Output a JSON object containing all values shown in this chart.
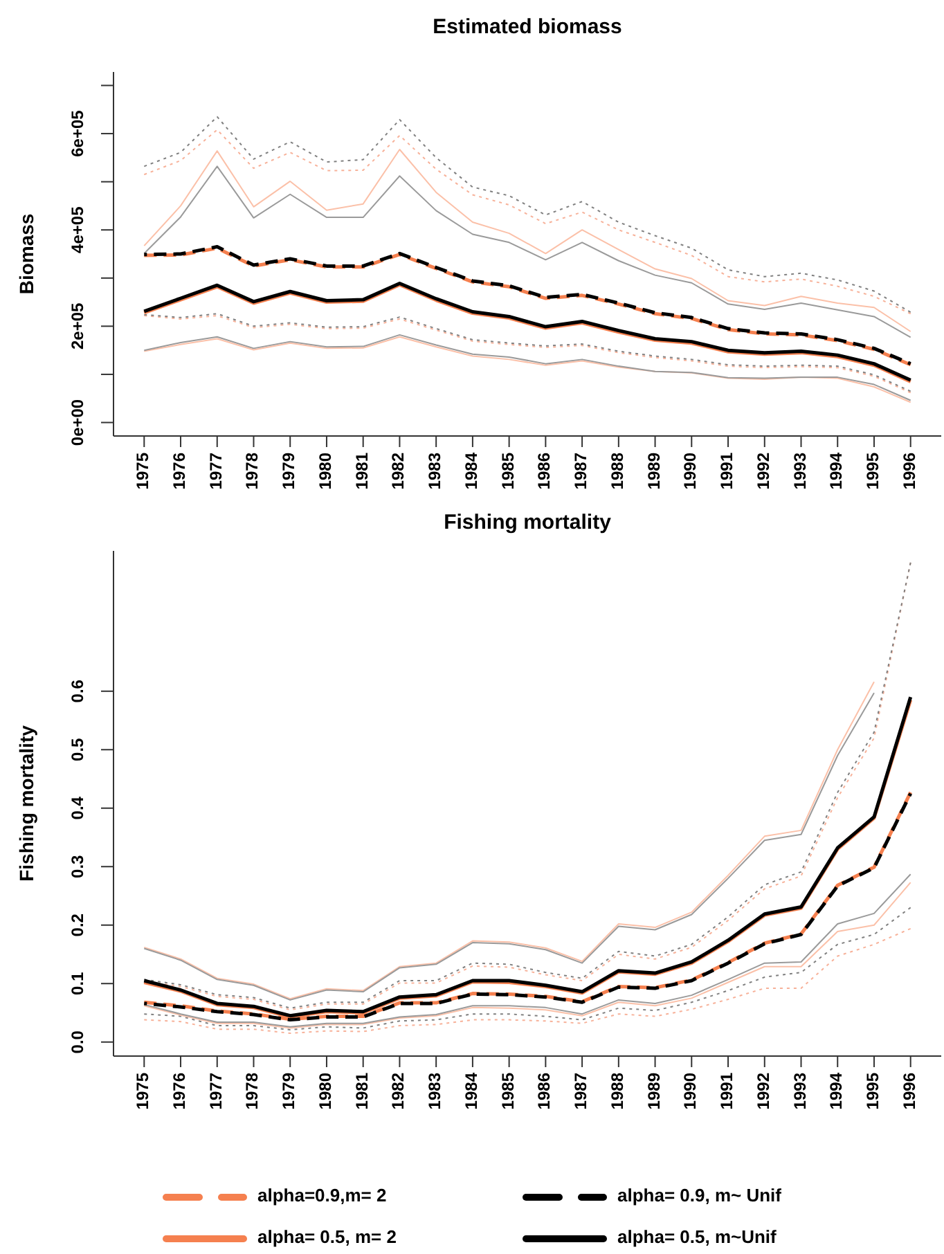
{
  "chart_data": [
    {
      "type": "line",
      "title": "Estimated biomass",
      "ylabel": "Biomass",
      "categories": [
        "1975",
        "1976",
        "1977",
        "1978",
        "1979",
        "1980",
        "1981",
        "1982",
        "1983",
        "1984",
        "1985",
        "1986",
        "1987",
        "1988",
        "1989",
        "1990",
        "1991",
        "1992",
        "1993",
        "1994",
        "1995",
        "1996"
      ],
      "ylim": [
        -28000,
        728000
      ],
      "yticks": [
        {
          "value": 0,
          "label": "0e+00"
        },
        {
          "value": 100000,
          "label": null
        },
        {
          "value": 200000,
          "label": "2e+05"
        },
        {
          "value": 300000,
          "label": null
        },
        {
          "value": 400000,
          "label": "4e+05"
        },
        {
          "value": 500000,
          "label": null
        },
        {
          "value": 600000,
          "label": "6e+05"
        },
        {
          "value": 700000,
          "label": null
        }
      ],
      "series": [
        {
          "color": "#f7b199",
          "line_style": "dotted",
          "values": [
            515000,
            544000,
            608000,
            528000,
            561000,
            523000,
            524000,
            596000,
            526000,
            473000,
            452000,
            413000,
            437000,
            400000,
            374000,
            347000,
            303000,
            292000,
            298000,
            283000,
            262000,
            226000
          ]
        },
        {
          "color": "#f7b199",
          "line_style": "dotted",
          "values": [
            222000,
            215000,
            222000,
            197000,
            204000,
            195000,
            196000,
            215000,
            192000,
            169000,
            162000,
            156000,
            160000,
            145000,
            135000,
            128000,
            117000,
            114000,
            116000,
            114000,
            96000,
            62000
          ]
        },
        {
          "color": "#808080",
          "line_style": "dotted",
          "values": [
            532000,
            561000,
            635000,
            547000,
            583000,
            541000,
            546000,
            629000,
            550000,
            489000,
            471000,
            431000,
            459000,
            416000,
            388000,
            362000,
            317000,
            303000,
            310000,
            296000,
            273000,
            229000
          ]
        },
        {
          "color": "#808080",
          "line_style": "dotted",
          "values": [
            224000,
            218000,
            226000,
            200000,
            207000,
            198000,
            199000,
            219000,
            195000,
            172000,
            165000,
            159000,
            163000,
            148000,
            138000,
            131000,
            120000,
            117000,
            119000,
            117000,
            99000,
            65000
          ]
        },
        {
          "color": "#fbc0a8",
          "line_style": "solid",
          "values": [
            367000,
            450000,
            564000,
            448000,
            501000,
            441000,
            454000,
            567000,
            478000,
            416000,
            393000,
            351000,
            400000,
            359000,
            319000,
            299000,
            253000,
            243000,
            262000,
            248000,
            239000,
            189000
          ]
        },
        {
          "color": "#fbc0a8",
          "line_style": "solid",
          "values": [
            148000,
            162000,
            174000,
            151000,
            165000,
            154000,
            155000,
            178000,
            157000,
            138000,
            131000,
            119000,
            128000,
            115000,
            106000,
            103000,
            92000,
            90000,
            94000,
            92000,
            74000,
            42000
          ]
        },
        {
          "color": "#9a9a9a",
          "line_style": "solid",
          "values": [
            351000,
            427000,
            532000,
            425000,
            474000,
            426000,
            426000,
            512000,
            440000,
            391000,
            374000,
            338000,
            374000,
            336000,
            306000,
            290000,
            246000,
            235000,
            248000,
            234000,
            220000,
            177000
          ]
        },
        {
          "color": "#9a9a9a",
          "line_style": "solid",
          "values": [
            150000,
            166000,
            178000,
            154000,
            168000,
            157000,
            158000,
            182000,
            161000,
            142000,
            136000,
            122000,
            131000,
            117000,
            106000,
            104000,
            93000,
            92000,
            94000,
            94000,
            79000,
            46000
          ]
        },
        {
          "color": "#f5804f",
          "line_style": "dashed",
          "values": [
            347000,
            348000,
            362000,
            325000,
            338000,
            323000,
            323000,
            349000,
            320000,
            292000,
            282000,
            258000,
            264000,
            246000,
            226000,
            216000,
            193000,
            184000,
            182000,
            170000,
            152000,
            120000
          ]
        },
        {
          "color": "#f5804f",
          "line_style": "solid",
          "values": [
            228000,
            255000,
            282000,
            248000,
            269000,
            250000,
            252000,
            286000,
            254000,
            227000,
            217000,
            196000,
            207000,
            188000,
            171000,
            165000,
            147000,
            142000,
            145000,
            137000,
            119000,
            85000
          ]
        },
        {
          "color": "#000000",
          "line_style": "dashed",
          "values": [
            349000,
            350000,
            365000,
            327000,
            340000,
            325000,
            325000,
            351000,
            322000,
            294000,
            284000,
            260000,
            266000,
            248000,
            228000,
            218000,
            195000,
            186000,
            184000,
            172000,
            154000,
            122000
          ]
        },
        {
          "color": "#000000",
          "line_style": "solid",
          "values": [
            231000,
            258000,
            285000,
            251000,
            272000,
            253000,
            255000,
            289000,
            257000,
            230000,
            220000,
            199000,
            210000,
            191000,
            174000,
            168000,
            150000,
            145000,
            148000,
            140000,
            122000,
            88000
          ]
        }
      ]
    },
    {
      "type": "line",
      "title": "Fishing mortality",
      "ylabel": "Fishing mortality",
      "categories": [
        "1975",
        "1976",
        "1977",
        "1978",
        "1979",
        "1980",
        "1981",
        "1982",
        "1983",
        "1984",
        "1985",
        "1986",
        "1987",
        "1988",
        "1989",
        "1990",
        "1991",
        "1992",
        "1993",
        "1994",
        "1995",
        "1996"
      ],
      "ylim": [
        -0.024,
        0.84
      ],
      "yticks": [
        {
          "value": 0,
          "label": "0.0"
        },
        0.1,
        0.2,
        0.3,
        0.4,
        0.5,
        0.6
      ],
      "legend": "bottom",
      "series": [
        {
          "color": "#f7b199",
          "line_style": "dotted",
          "values": [
            0.104,
            0.095,
            0.078,
            0.073,
            0.055,
            0.065,
            0.065,
            0.101,
            0.101,
            0.13,
            0.128,
            0.115,
            0.105,
            0.15,
            0.142,
            0.162,
            0.208,
            0.262,
            0.284,
            0.418,
            0.52,
            0.82
          ]
        },
        {
          "color": "#f7b199",
          "line_style": "dotted",
          "values": [
            0.038,
            0.035,
            0.022,
            0.022,
            0.015,
            0.019,
            0.018,
            0.028,
            0.03,
            0.038,
            0.038,
            0.036,
            0.032,
            0.048,
            0.044,
            0.056,
            0.073,
            0.092,
            0.092,
            0.147,
            0.167,
            0.194
          ]
        },
        {
          "color": "#808080",
          "line_style": "dotted",
          "values": [
            0.107,
            0.098,
            0.081,
            0.076,
            0.058,
            0.068,
            0.068,
            0.105,
            0.105,
            0.135,
            0.133,
            0.119,
            0.109,
            0.155,
            0.147,
            0.167,
            0.214,
            0.269,
            0.291,
            0.427,
            0.53,
            0.82
          ]
        },
        {
          "color": "#808080",
          "line_style": "dotted",
          "values": [
            0.048,
            0.044,
            0.028,
            0.028,
            0.021,
            0.026,
            0.024,
            0.036,
            0.038,
            0.048,
            0.048,
            0.044,
            0.038,
            0.058,
            0.054,
            0.068,
            0.088,
            0.111,
            0.119,
            0.167,
            0.184,
            0.23
          ]
        },
        {
          "color": "#fbc0a8",
          "line_style": "solid",
          "values": [
            0.162,
            0.142,
            0.109,
            0.099,
            0.074,
            0.091,
            0.088,
            0.129,
            0.135,
            0.173,
            0.171,
            0.161,
            0.138,
            0.202,
            0.196,
            0.222,
            0.285,
            0.352,
            0.362,
            0.5,
            0.616,
            null
          ]
        },
        {
          "color": "#fbc0a8",
          "line_style": "solid",
          "values": [
            0.062,
            0.046,
            0.032,
            0.032,
            0.024,
            0.03,
            0.03,
            0.041,
            0.045,
            0.059,
            0.058,
            0.055,
            0.045,
            0.068,
            0.062,
            0.075,
            0.102,
            0.129,
            0.129,
            0.189,
            0.2,
            0.273
          ]
        },
        {
          "color": "#9a9a9a",
          "line_style": "solid",
          "values": [
            0.16,
            0.14,
            0.107,
            0.097,
            0.072,
            0.089,
            0.086,
            0.127,
            0.133,
            0.17,
            0.168,
            0.158,
            0.135,
            0.198,
            0.192,
            0.218,
            0.28,
            0.345,
            0.355,
            0.49,
            0.597,
            null
          ]
        },
        {
          "color": "#9a9a9a",
          "line_style": "solid",
          "values": [
            0.064,
            0.048,
            0.034,
            0.034,
            0.026,
            0.032,
            0.032,
            0.043,
            0.047,
            0.062,
            0.062,
            0.059,
            0.048,
            0.072,
            0.066,
            0.08,
            0.107,
            0.135,
            0.137,
            0.202,
            0.22,
            0.287
          ]
        },
        {
          "name": "alpha=0.9,m= 2",
          "color": "#f5804f",
          "line_style": "dashed",
          "values": [
            0.068,
            0.062,
            0.053,
            0.048,
            0.039,
            0.044,
            0.044,
            0.067,
            0.067,
            0.083,
            0.082,
            0.078,
            0.069,
            0.095,
            0.093,
            0.106,
            0.136,
            0.169,
            0.185,
            0.268,
            0.299,
            0.427
          ]
        },
        {
          "name": "alpha= 0.5, m= 2",
          "color": "#f5804f",
          "line_style": "solid",
          "values": [
            0.102,
            0.087,
            0.064,
            0.059,
            0.043,
            0.052,
            0.05,
            0.075,
            0.079,
            0.103,
            0.102,
            0.095,
            0.084,
            0.12,
            0.116,
            0.135,
            0.172,
            0.217,
            0.229,
            0.33,
            0.383,
            0.585
          ]
        },
        {
          "name": "alpha= 0.9, m~ Unif",
          "color": "#000000",
          "line_style": "dashed",
          "values": [
            0.066,
            0.06,
            0.052,
            0.047,
            0.038,
            0.043,
            0.043,
            0.066,
            0.066,
            0.082,
            0.081,
            0.077,
            0.068,
            0.094,
            0.092,
            0.105,
            0.135,
            0.168,
            0.184,
            0.267,
            0.298,
            0.425
          ]
        },
        {
          "name": "alpha= 0.5, m~Unif",
          "color": "#000000",
          "line_style": "solid",
          "values": [
            0.105,
            0.089,
            0.066,
            0.061,
            0.045,
            0.054,
            0.052,
            0.077,
            0.081,
            0.105,
            0.105,
            0.097,
            0.086,
            0.122,
            0.118,
            0.137,
            0.174,
            0.219,
            0.231,
            0.332,
            0.385,
            0.59
          ]
        }
      ]
    }
  ]
}
